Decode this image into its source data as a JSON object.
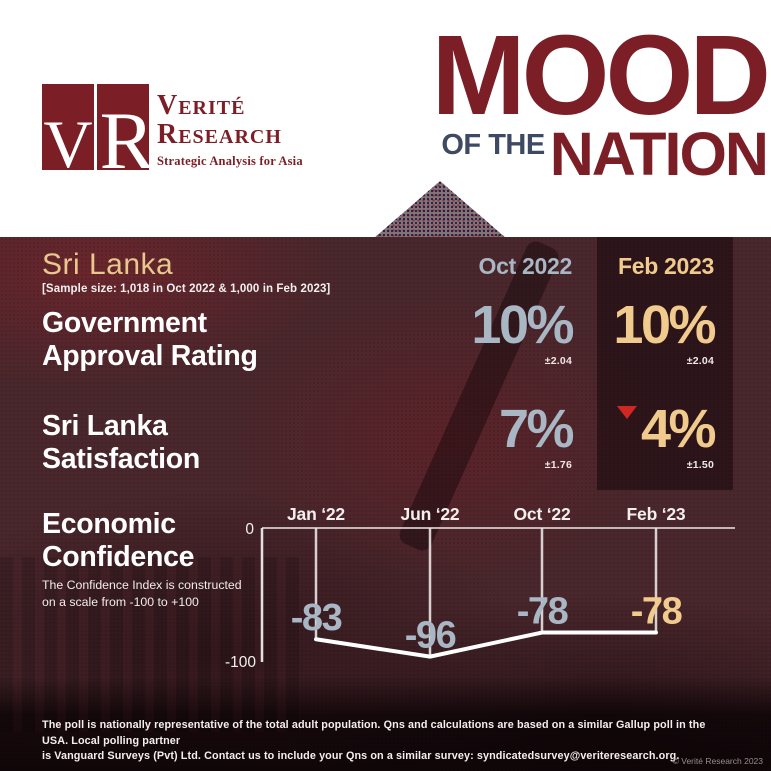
{
  "colors": {
    "maroon": "#7b1e26",
    "navy": "#3e4a63",
    "panel": "#4a272c",
    "blue": "#a9b6c4",
    "gold": "#f1cb8d",
    "red": "#cf2823"
  },
  "header": {
    "logo": {
      "letter1": "V",
      "letter2": "R",
      "name1": "Verité",
      "name2": "Research",
      "tagline": "Strategic Analysis for Asia"
    },
    "title": {
      "line1": "MOOD",
      "line2a": "OF THE",
      "line2b": "NATION"
    }
  },
  "panel": {
    "country": "Sri Lanka",
    "sample_note": "[Sample size: 1,018 in Oct 2022 & 1,000 in Feb 2023]",
    "col1": "Oct 2022",
    "col2": "Feb 2023",
    "rows": [
      {
        "label1": "Government",
        "label2": "Approval Rating",
        "oct_value": "10%",
        "oct_moe": "±2.04",
        "feb_value": "10%",
        "feb_moe": "±2.04",
        "feb_trend": "none"
      },
      {
        "label1": "Sri Lanka",
        "label2": "Satisfaction",
        "oct_value": "7%",
        "oct_moe": "±1.76",
        "feb_value": "4%",
        "feb_moe": "±1.50",
        "feb_trend": "down"
      }
    ],
    "confidence": {
      "label1": "Economic",
      "label2": "Confidence",
      "note1": "The Confidence Index is constructed",
      "note2": "on a scale from -100 to +100"
    }
  },
  "chart_data": {
    "type": "line",
    "title": "Economic Confidence",
    "categories": [
      "Jan ‘22",
      "Jun ‘22",
      "Oct ‘22",
      "Feb ‘23"
    ],
    "values": [
      -83,
      -96,
      -78,
      -78
    ],
    "ylim": [
      -100,
      0
    ],
    "y_ticks": [
      "0",
      "-100"
    ],
    "series_color": "#a9b6c4",
    "highlight_last_color": "#f1cb8d",
    "line_color": "#ffffff",
    "legend": "none",
    "grid": "off"
  },
  "footer": {
    "line1": "The poll is nationally representative of the total adult population. Qns and calculations are based on a similar Gallup poll in the USA. Local polling partner",
    "line2": "is Vanguard Surveys (Pvt) Ltd. Contact us to include your Qns on a similar survey: syndicatedsurvey@veriteresearch.org.",
    "copyright": "© Verité Research 2023"
  }
}
